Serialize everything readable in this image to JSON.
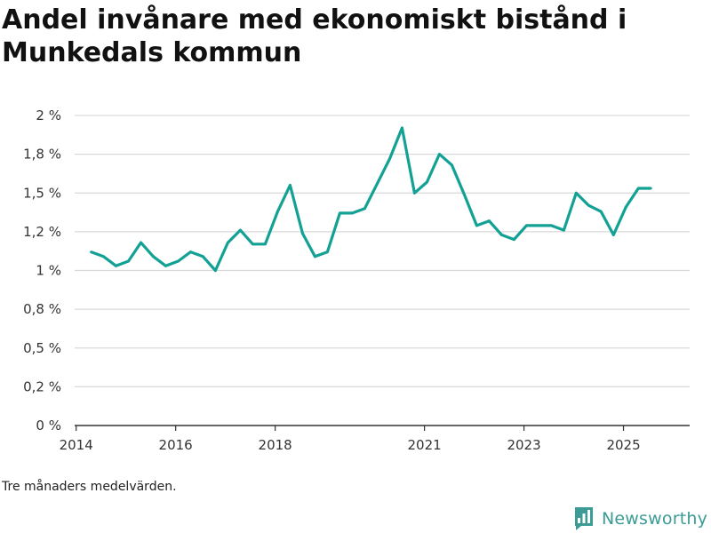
{
  "title": "Andel invånare med ekonomiskt bistånd i Munkedals kommun",
  "footnote": "Tre månaders medelvärden.",
  "brand": {
    "name": "Newsworthy",
    "icon": "newsworthy-logo-icon",
    "color": "#3a9c94"
  },
  "colors": {
    "line": "#12a194",
    "grid": "#d9d9d9",
    "axis": "#333333"
  },
  "chart_data": {
    "type": "line",
    "title": "Andel invånare med ekonomiskt bistånd i Munkedals kommun",
    "xlabel": "",
    "ylabel": "",
    "grid": true,
    "xlim": [
      2013.97,
      2026.33
    ],
    "ylim": [
      0,
      2
    ],
    "y_ticks": [
      0,
      0.25,
      0.5,
      0.75,
      1,
      1.25,
      1.5,
      1.75,
      2
    ],
    "y_tick_labels": [
      "0 %",
      "0,2 %",
      "0,5 %",
      "0,8 %",
      "1 %",
      "1,2 %",
      "1,5 %",
      "1,8 %",
      "2 %"
    ],
    "x_ticks": [
      2014,
      2016,
      2018,
      2021,
      2023,
      2025
    ],
    "x_tick_labels": [
      "2014",
      "2016",
      "2018",
      "2021",
      "2023",
      "2025"
    ],
    "series": [
      {
        "name": "Andel invånare med ekonomiskt bistånd",
        "x": [
          2014.3,
          2014.55,
          2014.8,
          2015.05,
          2015.3,
          2015.55,
          2015.8,
          2016.05,
          2016.3,
          2016.55,
          2016.8,
          2017.05,
          2017.3,
          2017.55,
          2017.8,
          2018.05,
          2018.3,
          2018.55,
          2018.8,
          2019.05,
          2019.3,
          2019.55,
          2019.8,
          2020.05,
          2020.3,
          2020.55,
          2020.8,
          2021.05,
          2021.3,
          2021.55,
          2021.8,
          2022.05,
          2022.3,
          2022.55,
          2022.8,
          2023.05,
          2023.3,
          2023.55,
          2023.8,
          2024.05,
          2024.3,
          2024.55,
          2024.8,
          2025.05,
          2025.3,
          2025.55
        ],
        "values": [
          1.12,
          1.09,
          1.03,
          1.06,
          1.18,
          1.09,
          1.03,
          1.06,
          1.12,
          1.09,
          1.0,
          1.18,
          1.26,
          1.17,
          1.17,
          1.38,
          1.55,
          1.24,
          1.09,
          1.12,
          1.37,
          1.37,
          1.4,
          1.56,
          1.72,
          1.92,
          1.5,
          1.57,
          1.75,
          1.68,
          1.49,
          1.29,
          1.32,
          1.23,
          1.2,
          1.29,
          1.29,
          1.29,
          1.26,
          1.5,
          1.42,
          1.38,
          1.23,
          1.41,
          1.53,
          1.53
        ]
      }
    ]
  }
}
